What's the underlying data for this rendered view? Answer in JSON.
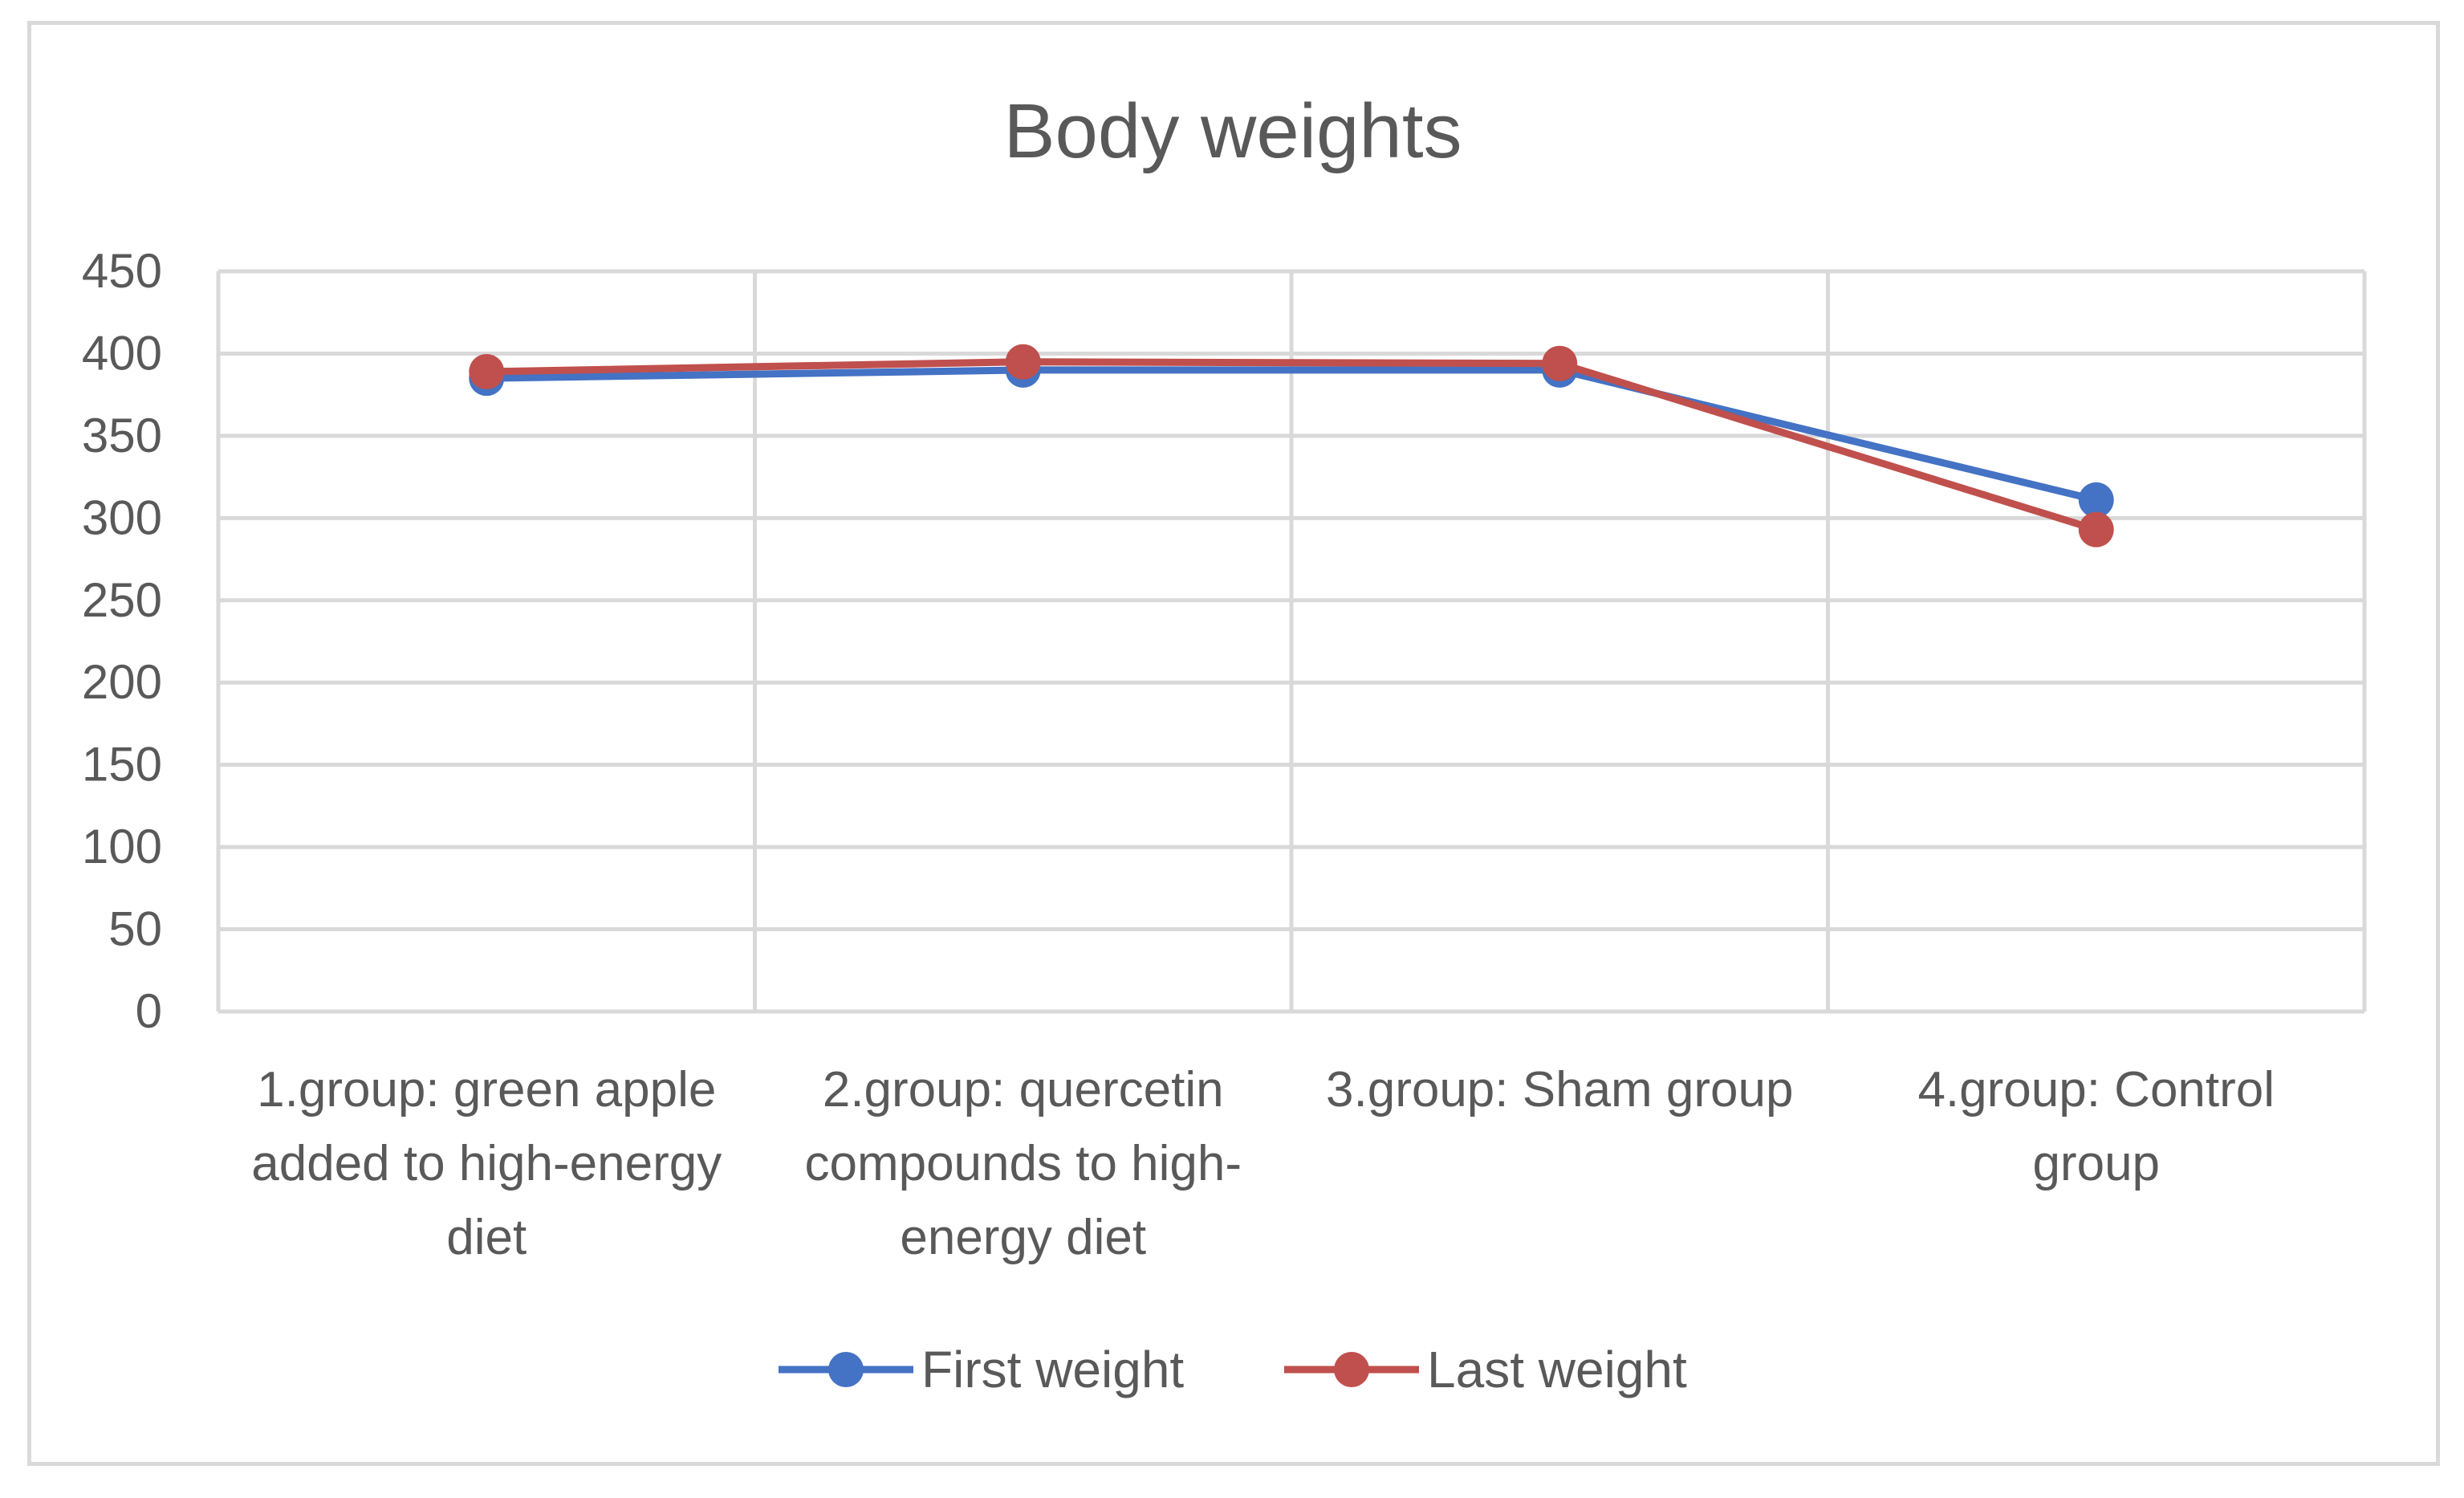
{
  "chart_data": {
    "type": "line",
    "title": "Body weights",
    "xlabel": "",
    "ylabel": "",
    "ylim": [
      0,
      450
    ],
    "yticks": [
      "0",
      "50",
      "100",
      "150",
      "200",
      "250",
      "300",
      "350",
      "400",
      "450"
    ],
    "grid": true,
    "legend_position": "bottom",
    "categories": [
      "1.group: green apple added to high-energy diet",
      "2.group: quercetin compounds to high-energy diet",
      "3.group: Sham group",
      "4.group: Control group"
    ],
    "category_lines": [
      [
        "1.group: green apple",
        "added to high-energy",
        "diet"
      ],
      [
        "2.group: quercetin",
        "compounds to high-",
        "energy diet"
      ],
      [
        "3.group: Sham group"
      ],
      [
        "4.group: Control",
        "group"
      ]
    ],
    "series": [
      {
        "name": "First weight",
        "color": "#4472c4",
        "values": [
          385,
          390,
          390,
          311
        ]
      },
      {
        "name": "Last weight",
        "color": "#c0504d",
        "values": [
          389,
          395,
          394,
          293
        ]
      }
    ]
  }
}
